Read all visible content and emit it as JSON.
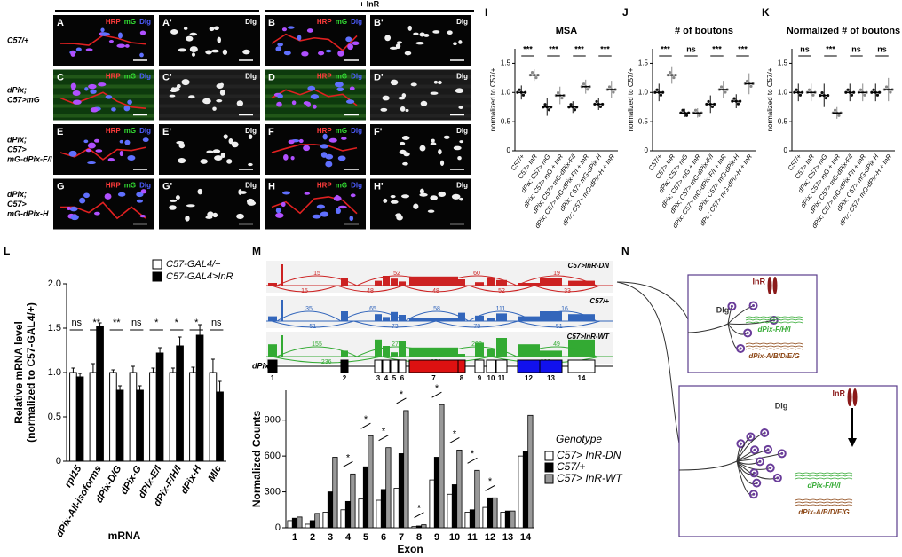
{
  "images": {
    "header": "+ InR",
    "channel_colors": [
      "#ff3b3b",
      "#33dd33",
      "#4d5dff"
    ],
    "rows": [
      {
        "label": [
          "C57/+"
        ],
        "panels": [
          {
            "letter": "A",
            "channels": [
              "HRP",
              "mG",
              "Dlg"
            ]
          },
          {
            "letter": "A'",
            "channels": [
              "Dlg"
            ]
          },
          {
            "letter": "B",
            "channels": [
              "HRP",
              "mG",
              "Dlg"
            ]
          },
          {
            "letter": "B'",
            "channels": [
              "Dlg"
            ]
          }
        ]
      },
      {
        "label": [
          "dPix;",
          "C57>mG"
        ],
        "panels": [
          {
            "letter": "C",
            "channels": [
              "HRP",
              "mG",
              "Dlg"
            ]
          },
          {
            "letter": "C'",
            "channels": [
              "Dlg"
            ]
          },
          {
            "letter": "D",
            "channels": [
              "HRP",
              "mG",
              "Dlg"
            ]
          },
          {
            "letter": "D'",
            "channels": [
              "Dlg"
            ]
          }
        ]
      },
      {
        "label": [
          "dPix;",
          "C57>",
          "mG-dPix-F/I"
        ],
        "panels": [
          {
            "letter": "E",
            "channels": [
              "HRP",
              "mG",
              "Dlg"
            ]
          },
          {
            "letter": "E'",
            "channels": [
              "Dlg"
            ]
          },
          {
            "letter": "F",
            "channels": [
              "HRP",
              "mG",
              "Dlg"
            ]
          },
          {
            "letter": "F'",
            "channels": [
              "Dlg"
            ]
          }
        ]
      },
      {
        "label": [
          "dPix;",
          "C57>",
          "mG-dPix-H"
        ],
        "panels": [
          {
            "letter": "G",
            "channels": [
              "HRP",
              "mG",
              "Dlg"
            ]
          },
          {
            "letter": "G'",
            "channels": [
              "Dlg"
            ]
          },
          {
            "letter": "H",
            "channels": [
              "HRP",
              "mG",
              "Dlg"
            ]
          },
          {
            "letter": "H'",
            "channels": [
              "Dlg"
            ]
          }
        ]
      }
    ]
  },
  "scatter_panels": [
    {
      "letter": "I",
      "title": "MSA",
      "ylabel": "normalized to C57/+",
      "categories": [
        "C57/+",
        "C57> InR",
        "dPix; C57> mG",
        "dPix; C57> mG + InR",
        "dPix; C57> mG-dPix-F/I",
        "dPix; C57> mG-dPix-F/I + InR",
        "dPix; C57> mG-dPix-H",
        "dPix; C57> mG-dPix-H + InR"
      ],
      "ylim": [
        0,
        1.75
      ],
      "yticks": [
        0,
        0.5,
        {
          "value": 1,
          "label": "1.0"
        },
        1.5
      ],
      "values": [
        1.0,
        1.3,
        0.75,
        0.95,
        0.75,
        1.1,
        0.8,
        1.05
      ],
      "errors": [
        0.12,
        0.1,
        0.15,
        0.15,
        0.1,
        0.12,
        0.1,
        0.15
      ],
      "point_colors": [
        "#111111",
        "#888888"
      ],
      "significance": [
        "***",
        "***",
        "***",
        "***"
      ]
    },
    {
      "letter": "J",
      "title": "# of boutons",
      "ylabel": "normalized to C57/+",
      "categories": [
        "C57/+",
        "C57> InR",
        "dPix; C57> mG",
        "dPix; C57> mG + InR",
        "dPix; C57> mG-dPix-F/I",
        "dPix; C57> mG-dPix-F/I + InR",
        "dPix; C57> mG-dPix-H",
        "dPix; C57> mG-dPix-H + InR"
      ],
      "ylim": [
        0,
        1.75
      ],
      "yticks": [
        0,
        0.5,
        {
          "value": 1,
          "label": "1.0"
        },
        1.5
      ],
      "values": [
        1.0,
        1.3,
        0.65,
        0.65,
        0.8,
        1.05,
        0.85,
        1.15
      ],
      "errors": [
        0.15,
        0.15,
        0.07,
        0.08,
        0.15,
        0.15,
        0.12,
        0.18
      ],
      "point_colors": [
        "#111111",
        "#888888"
      ],
      "significance": [
        "***",
        "ns",
        "***",
        "***"
      ]
    },
    {
      "letter": "K",
      "title": "Normalized # of boutons",
      "ylabel": "normalized to C57/+",
      "categories": [
        "C57/+",
        "C57> InR",
        "dPix; C57> mG",
        "dPix; C57> mG + InR",
        "dPix; C57> mG-dPix-F/I",
        "dPix; C57> mG-dPix-F/I + InR",
        "dPix; C57> mG-dPix-H",
        "dPix; C57> mG-dPix-H + InR"
      ],
      "ylim": [
        0,
        1.75
      ],
      "yticks": [
        0,
        0.5,
        {
          "value": 1,
          "label": "1.0"
        },
        1.5
      ],
      "values": [
        1.0,
        1.0,
        0.95,
        0.65,
        1.0,
        1.0,
        1.0,
        1.05
      ],
      "errors": [
        0.15,
        0.15,
        0.2,
        0.1,
        0.15,
        0.15,
        0.15,
        0.2
      ],
      "point_colors": [
        "#111111",
        "#888888"
      ],
      "significance": [
        "ns",
        "***",
        "ns",
        "ns"
      ]
    }
  ],
  "mrna_chart": {
    "letter": "L",
    "ylabel": [
      "Relative mRNA level",
      "(normalized to C57-GAL4/+)"
    ],
    "xlabel": "mRNA",
    "categories": [
      "rpl15",
      "dPix-All-isoforms",
      "dPix-D/G",
      "dPix-G",
      "dPix-E/I",
      "dPix-F/H/I",
      "dPix-H",
      "Mlc"
    ],
    "ylim": [
      0,
      2
    ],
    "yticks": [
      0,
      0.5,
      {
        "value": 1,
        "label": "1.0"
      },
      1.5,
      {
        "value": 2,
        "label": "2.0"
      }
    ],
    "series": [
      {
        "name": "C57-GAL4/+",
        "color": "#ffffff",
        "values": [
          1,
          1,
          1,
          1,
          1,
          1,
          1,
          1
        ],
        "errors": [
          0.05,
          0.1,
          0.03,
          0.07,
          0.05,
          0.05,
          0.06,
          0.15
        ]
      },
      {
        "name": "C57-GAL4>InR",
        "color": "#000000",
        "values": [
          0.95,
          1.52,
          0.8,
          0.8,
          1.22,
          1.3,
          1.42,
          0.78
        ],
        "errors": [
          0.04,
          0.04,
          0.05,
          0.05,
          0.06,
          0.1,
          0.12,
          0.12
        ]
      }
    ],
    "significance": [
      "ns",
      "**",
      "**",
      "ns",
      "*",
      "*",
      "*",
      "ns"
    ]
  },
  "sashimi": {
    "letter": "M",
    "gene": "dPix",
    "tracks": [
      {
        "name": "C57>InR-DN",
        "color": "#cc2222",
        "above": [
          15,
          52,
          60,
          19
        ],
        "below": [
          15,
          48,
          48,
          52,
          33
        ]
      },
      {
        "name": "C57/+",
        "color": "#3366bb",
        "above": [
          35,
          65,
          58,
          111,
          16
        ],
        "below": [
          51,
          73,
          78,
          51
        ]
      },
      {
        "name": "C57>InR-WT",
        "color": "#33aa33",
        "above": [
          155,
          270,
          203,
          49
        ],
        "below": [
          236,
          256,
          222
        ]
      }
    ],
    "exons": [
      "1",
      "2",
      "3",
      "4",
      "5",
      "6",
      "7",
      "8",
      "9",
      "10",
      "11",
      "12",
      "13",
      "14"
    ]
  },
  "exon_counts": {
    "ylabel": "Normalized Counts",
    "xlabel": "Exon",
    "legend_title": "Genotype",
    "categories": [
      "1",
      "2",
      "3",
      "4",
      "5",
      "6",
      "7",
      "8",
      "9",
      "10",
      "11",
      "12",
      "13",
      "14"
    ],
    "ylim": [
      0,
      1150
    ],
    "yticks": [
      0,
      300,
      600,
      900
    ],
    "series": [
      {
        "name": "C57> InR-DN",
        "color": "#ffffff",
        "values": [
          60,
          30,
          130,
          150,
          240,
          230,
          330,
          10,
          400,
          280,
          130,
          170,
          130,
          600
        ]
      },
      {
        "name": "C57/+",
        "color": "#000000",
        "values": [
          80,
          60,
          300,
          220,
          510,
          320,
          620,
          15,
          590,
          360,
          150,
          250,
          140,
          640
        ]
      },
      {
        "name": "C57> InR-WT",
        "color": "#999999",
        "values": [
          90,
          120,
          590,
          450,
          770,
          670,
          980,
          25,
          1030,
          650,
          480,
          250,
          140,
          940
        ]
      }
    ],
    "significance": [
      null,
      null,
      null,
      "*",
      "*",
      "*",
      "*",
      "*",
      "*",
      "*",
      "*",
      "*",
      null,
      null
    ]
  },
  "model": {
    "letter": "N",
    "basal": {
      "receptor": "InR",
      "synapse": "Dlg",
      "isoforms": [
        "dPix-F/H/I",
        "dPix-A/B/D/E/G"
      ]
    },
    "activated": {
      "receptor": "InR",
      "synapse": "Dlg",
      "isoforms": [
        "dPix-F/H/I",
        "dPix-A/B/D/E/G"
      ]
    }
  }
}
